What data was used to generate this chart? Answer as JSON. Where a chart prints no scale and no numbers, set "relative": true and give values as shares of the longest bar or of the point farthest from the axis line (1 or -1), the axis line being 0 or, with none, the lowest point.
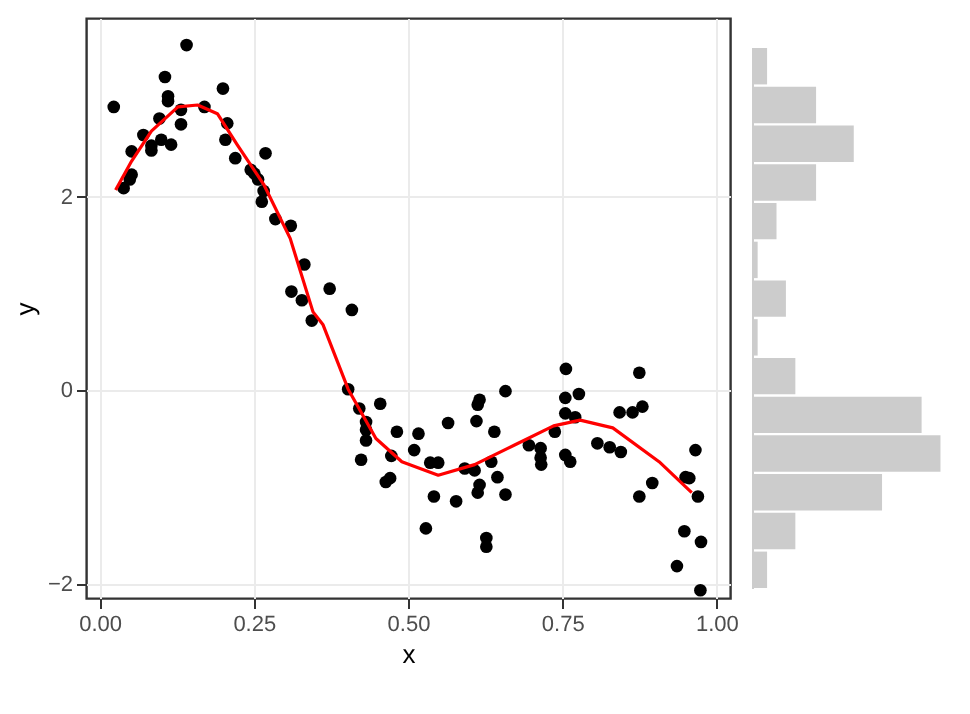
{
  "chart_data": [
    {
      "type": "scatter",
      "xlabel": "x",
      "ylabel": "y",
      "xlim": [
        -0.022,
        1.022
      ],
      "ylim": [
        -2.15,
        3.85
      ],
      "xticks": [
        {
          "value": 0,
          "label": "0.00"
        },
        {
          "value": 0.25,
          "label": "0.25"
        },
        {
          "value": 0.5,
          "label": "0.50"
        },
        {
          "value": 0.75,
          "label": "0.75"
        },
        {
          "value": 1,
          "label": "1.00"
        }
      ],
      "yticks": [
        -2,
        0,
        2
      ],
      "grid": true,
      "marker": "circle",
      "series": [
        {
          "type": "scatter",
          "color": "#000000",
          "x": [
            0.023,
            0.141,
            0.106,
            0.111,
            0.111,
            0.132,
            0.17,
            0.2,
            0.207,
            0.132,
            0.097,
            0.071,
            0.1,
            0.116,
            0.084,
            0.084,
            0.052,
            0.204,
            0.22,
            0.269,
            0.245,
            0.251,
            0.257,
            0.266,
            0.263,
            0.052,
            0.049,
            0.039,
            0.285,
            0.31,
            0.332,
            0.311,
            0.328,
            0.373,
            0.409,
            0.344,
            0.403,
            0.421,
            0.455,
            0.432,
            0.432,
            0.432,
            0.482,
            0.424,
            0.473,
            0.464,
            0.471,
            0.517,
            0.51,
            0.536,
            0.549,
            0.565,
            0.542,
            0.578,
            0.529,
            0.592,
            0.608,
            0.613,
            0.616,
            0.611,
            0.613,
            0.616,
            0.64,
            0.635,
            0.645,
            0.658,
            0.627,
            0.627,
            0.658,
            0.696,
            0.715,
            0.715,
            0.716,
            0.738,
            0.755,
            0.763,
            0.756,
            0.755,
            0.777,
            0.755,
            0.771,
            0.807,
            0.827,
            0.845,
            0.843,
            0.864,
            0.88,
            0.875,
            0.875,
            0.896,
            0.95,
            0.956,
            0.966,
            0.97,
            0.948,
            0.975,
            0.936,
            0.974
          ],
          "values": [
            2.93,
            3.57,
            3.24,
            3.04,
            2.99,
            2.9,
            2.93,
            3.12,
            2.76,
            2.75,
            2.81,
            2.64,
            2.59,
            2.54,
            2.53,
            2.48,
            2.47,
            2.59,
            2.4,
            2.45,
            2.28,
            2.24,
            2.18,
            2.06,
            1.95,
            2.23,
            2.18,
            2.09,
            1.77,
            1.7,
            1.3,
            1.02,
            0.93,
            1.05,
            0.83,
            0.72,
            0.01,
            -0.19,
            -0.14,
            -0.33,
            -0.41,
            -0.52,
            -0.43,
            -0.72,
            -0.68,
            -0.95,
            -0.91,
            -0.45,
            -0.62,
            -0.75,
            -0.75,
            -0.34,
            -1.1,
            -1.15,
            -1.43,
            -0.81,
            -0.83,
            -1.06,
            -0.98,
            -0.32,
            -0.15,
            -0.1,
            -0.43,
            -0.74,
            -0.9,
            -1.08,
            -1.53,
            -1.62,
            -0.01,
            -0.57,
            -0.6,
            -0.7,
            -0.77,
            -0.43,
            -0.67,
            -0.74,
            0.22,
            -0.08,
            -0.04,
            -0.24,
            -0.28,
            -0.55,
            -0.59,
            -0.64,
            -0.23,
            -0.23,
            -0.17,
            0.18,
            -1.1,
            -0.96,
            -0.9,
            -0.91,
            -0.62,
            -1.1,
            -1.46,
            -1.57,
            -1.82,
            -2.07
          ]
        },
        {
          "type": "line",
          "color": "#ff0000",
          "marker": "none",
          "x": [
            0.026,
            0.052,
            0.084,
            0.127,
            0.159,
            0.191,
            0.223,
            0.266,
            0.309,
            0.346,
            0.362,
            0.403,
            0.448,
            0.49,
            0.549,
            0.608,
            0.672,
            0.736,
            0.779,
            0.832,
            0.907,
            0.96
          ],
          "values": [
            2.07,
            2.37,
            2.68,
            2.93,
            2.95,
            2.86,
            2.54,
            2.13,
            1.57,
            0.81,
            0.68,
            0.01,
            -0.5,
            -0.74,
            -0.88,
            -0.77,
            -0.57,
            -0.37,
            -0.31,
            -0.39,
            -0.74,
            -1.06
          ]
        }
      ]
    },
    {
      "type": "bar",
      "orientation": "horizontal",
      "relative": true,
      "color": "#cccccc",
      "categories": [
        null,
        null,
        null,
        null,
        null,
        null,
        null,
        null,
        null,
        null,
        null,
        null,
        null,
        null
      ],
      "values": [
        0.08,
        0.34,
        0.54,
        0.34,
        0.13,
        0.03,
        0.18,
        0.03,
        0.23,
        0.9,
        1,
        0.69,
        0.23,
        0.08
      ]
    }
  ]
}
